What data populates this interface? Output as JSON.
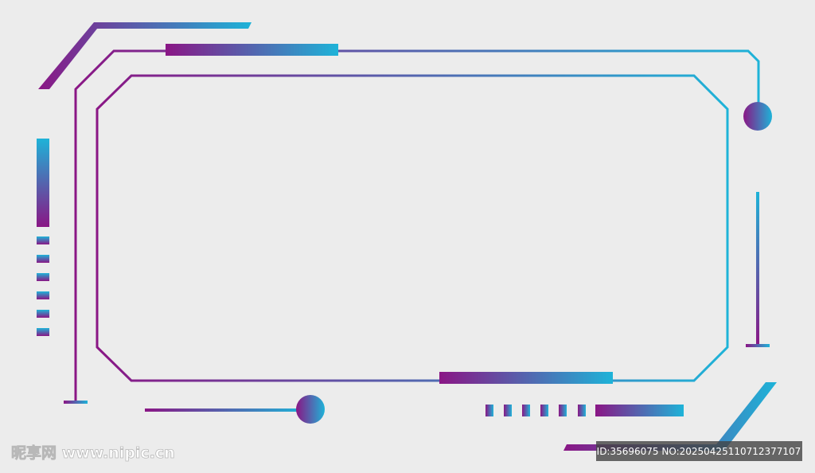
{
  "watermark": {
    "site": "昵享网 www.nipic.cn",
    "id": "ID:35696075 NO:20250425110712377107"
  }
}
